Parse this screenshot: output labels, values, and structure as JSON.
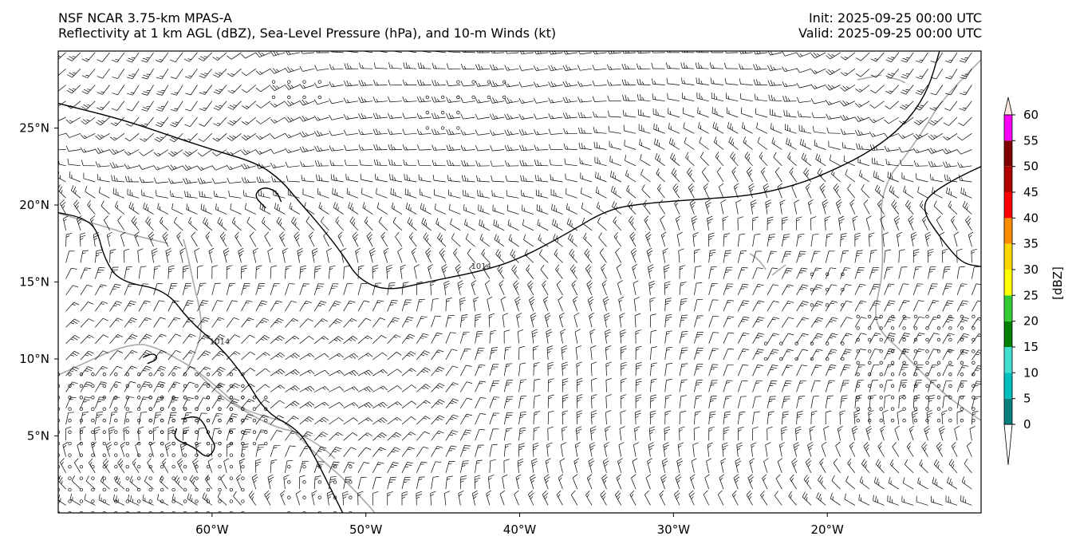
{
  "title": {
    "left_line1": "NSF NCAR 3.75-km MPAS-A",
    "left_line2": "Reflectivity at 1 km AGL (dBZ), Sea-Level Pressure (hPa), and 10-m Winds (kt)",
    "right_line1": "Init: 2025-09-25 00:00 UTC",
    "right_line2": "Valid: 2025-09-25 00:00 UTC"
  },
  "map": {
    "lon_range": [
      -70,
      -10
    ],
    "lat_range": [
      0,
      30
    ],
    "lon_ticks": [
      {
        "value": -60,
        "label": "60°W"
      },
      {
        "value": -50,
        "label": "50°W"
      },
      {
        "value": -40,
        "label": "40°W"
      },
      {
        "value": -30,
        "label": "30°W"
      },
      {
        "value": -20,
        "label": "20°W"
      }
    ],
    "lat_ticks": [
      {
        "value": 5,
        "label": "5°N"
      },
      {
        "value": 10,
        "label": "10°N"
      },
      {
        "value": 15,
        "label": "15°N"
      },
      {
        "value": 20,
        "label": "20°N"
      },
      {
        "value": 25,
        "label": "25°N"
      }
    ],
    "coast_color": "#a9a9a9",
    "contour_color": "#000000",
    "barb_color": "#000000"
  },
  "pressure_contours": [
    {
      "level": 1014,
      "label": "1014",
      "points": [
        [
          -70,
          26.6
        ],
        [
          -66,
          25.6
        ],
        [
          -63,
          24.6
        ],
        [
          -60,
          23.6
        ],
        [
          -57,
          22.7
        ],
        [
          -55.5,
          21.6
        ],
        [
          -54.5,
          20.4
        ],
        [
          -53,
          18.7
        ],
        [
          -51.5,
          16.8
        ],
        [
          -50.5,
          15.2
        ],
        [
          -48.7,
          14.4
        ],
        [
          -46,
          15
        ],
        [
          -42.5,
          15.7
        ],
        [
          -40,
          16.5
        ],
        [
          -37,
          18.1
        ],
        [
          -34.3,
          19.7
        ],
        [
          -32,
          20.1
        ],
        [
          -28,
          20.4
        ],
        [
          -25,
          20.6
        ],
        [
          -22,
          21.3
        ],
        [
          -19.5,
          22.3
        ],
        [
          -17,
          23.6
        ],
        [
          -15,
          25.2
        ],
        [
          -13.5,
          27.3
        ],
        [
          -12.7,
          30
        ]
      ]
    },
    {
      "level": 1014,
      "label": "1014",
      "points": [
        [
          -70,
          19.5
        ],
        [
          -68.5,
          19.2
        ],
        [
          -67.5,
          18.5
        ],
        [
          -67,
          16.5
        ],
        [
          -66,
          15
        ],
        [
          -63,
          14.5
        ],
        [
          -61.5,
          12.5
        ],
        [
          -59.5,
          10.8
        ],
        [
          -58,
          9
        ],
        [
          -56.5,
          6.5
        ],
        [
          -54.5,
          5.5
        ],
        [
          -53.5,
          4
        ],
        [
          -52.5,
          2
        ],
        [
          -51.5,
          0
        ]
      ]
    },
    {
      "level": 1014,
      "label": "",
      "points": [
        [
          -56.5,
          19.8
        ],
        [
          -57.3,
          20.6
        ],
        [
          -56.7,
          21.2
        ],
        [
          -55.8,
          20.9
        ],
        [
          -55.5,
          20.2
        ]
      ]
    },
    {
      "level": 1014,
      "label": "",
      "points": [
        [
          -10,
          22.5
        ],
        [
          -11.5,
          21.8
        ],
        [
          -13,
          20.9
        ],
        [
          -13.7,
          20.2
        ],
        [
          -13.6,
          19.3
        ],
        [
          -13,
          18.4
        ],
        [
          -12.2,
          17.3
        ],
        [
          -11.2,
          16.2
        ],
        [
          -10,
          16
        ]
      ]
    },
    {
      "level": 1014,
      "label": "",
      "points": [
        [
          -62,
          6.1
        ],
        [
          -61,
          6.3
        ],
        [
          -60.5,
          5.8
        ],
        [
          -60.2,
          5
        ],
        [
          -59.7,
          4.3
        ],
        [
          -60.3,
          3.5
        ],
        [
          -61.2,
          4.3
        ],
        [
          -62.5,
          4.8
        ],
        [
          -62.3,
          5.5
        ]
      ]
    },
    {
      "level": 1014,
      "label": "",
      "points": [
        [
          -64.5,
          10.1
        ],
        [
          -63.8,
          10.4
        ],
        [
          -63.5,
          10
        ],
        [
          -64.2,
          9.7
        ]
      ]
    }
  ],
  "reflectivity": {
    "colorbar_label": "[dBZ]",
    "ticks": [
      0,
      5,
      10,
      15,
      20,
      25,
      30,
      35,
      40,
      45,
      50,
      55,
      60
    ],
    "colors": [
      "#0b7f7f",
      "#00bfbf",
      "#40e0d0",
      "#008000",
      "#32cd32",
      "#ffff00",
      "#ffd700",
      "#ff8c00",
      "#ff0000",
      "#b00000",
      "#800000",
      "#ff00ff",
      "#ffe4e1"
    ],
    "under_color": "#ffffff"
  }
}
